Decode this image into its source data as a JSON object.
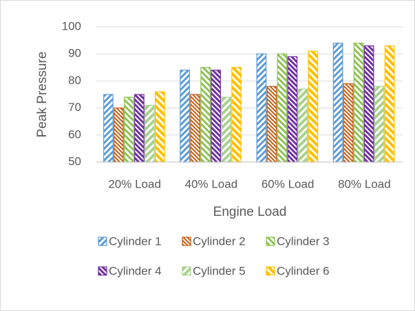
{
  "chart_data": {
    "type": "bar",
    "x_label": "Engine Load",
    "y_label": "Peak Pressure",
    "categories": [
      "20% Load",
      "40% Load",
      "60% Load",
      "80% Load"
    ],
    "series": [
      {
        "name": "Cylinder 1",
        "color": "#5b9bd5",
        "values": [
          75,
          84,
          90,
          94
        ]
      },
      {
        "name": "Cylinder 2",
        "color": "#c55a11",
        "values": [
          70,
          75,
          78,
          79
        ]
      },
      {
        "name": "Cylinder 3",
        "color": "#8cc152",
        "values": [
          74,
          85,
          90,
          94
        ]
      },
      {
        "name": "Cylinder 4",
        "color": "#7030a0",
        "values": [
          75,
          84,
          89,
          93
        ]
      },
      {
        "name": "Cylinder 5",
        "color": "#a9d18e",
        "values": [
          71,
          74,
          77,
          78
        ]
      },
      {
        "name": "Cylinder 6",
        "color": "#ffc000",
        "values": [
          76,
          85,
          91,
          93
        ]
      }
    ],
    "ylim": [
      50,
      100
    ],
    "yticks": [
      50,
      60,
      70,
      80,
      90,
      100
    ],
    "grid": true,
    "legend": "bottom"
  }
}
